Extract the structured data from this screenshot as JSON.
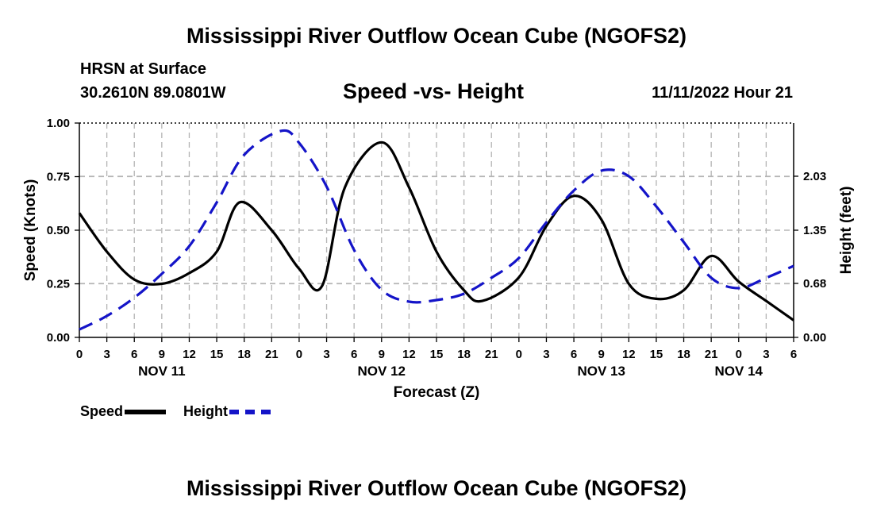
{
  "header": {
    "title": "Mississippi River Outflow Ocean Cube (NGOFS2)",
    "station": "HRSN at Surface",
    "coords": "30.2610N  89.0801W",
    "subtitle": "Speed -vs- Height",
    "datetime": "11/11/2022 Hour 21"
  },
  "footer": {
    "title": "Mississippi River Outflow Ocean Cube (NGOFS2)"
  },
  "colors": {
    "speed": "#000000",
    "height": "#1414c8",
    "grid": "#b4b4b4"
  },
  "chart_data": {
    "type": "line",
    "title": "Speed -vs- Height",
    "xlabel": "Forecast (Z)",
    "ylabel": "Speed (Knots)",
    "y2label": "Height (feet)",
    "xlim": [
      0,
      78
    ],
    "ylim": [
      0,
      1
    ],
    "y2lim": [
      0,
      2.7
    ],
    "x_ticks": [
      0,
      3,
      6,
      9,
      12,
      15,
      18,
      21,
      24,
      27,
      30,
      33,
      36,
      39,
      42,
      45,
      48,
      51,
      54,
      57,
      60,
      63,
      66,
      69,
      72,
      75,
      78
    ],
    "x_tick_labels": [
      "0",
      "3",
      "6",
      "9",
      "12",
      "15",
      "18",
      "21",
      "0",
      "3",
      "6",
      "9",
      "12",
      "15",
      "18",
      "21",
      "0",
      "3",
      "6",
      "9",
      "12",
      "15",
      "18",
      "21",
      "0",
      "3",
      "6"
    ],
    "date_labels": [
      {
        "x": 9,
        "label": "NOV 11"
      },
      {
        "x": 33,
        "label": "NOV 12"
      },
      {
        "x": 57,
        "label": "NOV 13"
      },
      {
        "x": 72,
        "label": "NOV 14"
      }
    ],
    "y_ticks": [
      0,
      0.25,
      0.5,
      0.75,
      1.0
    ],
    "y_tick_labels": [
      "0.00",
      "0.25",
      "0.50",
      "0.75",
      "1.00"
    ],
    "y2_ticks": [
      0,
      0.68,
      1.35,
      2.03
    ],
    "y2_tick_labels": [
      "0.00",
      "0.68",
      "1.35",
      "2.03"
    ],
    "series": [
      {
        "name": "Speed",
        "axis": "left",
        "style": "solid",
        "x": [
          0,
          3,
          6,
          9,
          12,
          15,
          17.5,
          21,
          24,
          26.5,
          29,
          33,
          36,
          39,
          42,
          44,
          48,
          51,
          54,
          57,
          60,
          63,
          66,
          69,
          72,
          75,
          78
        ],
        "values": [
          0.58,
          0.4,
          0.27,
          0.25,
          0.3,
          0.4,
          0.63,
          0.5,
          0.32,
          0.24,
          0.7,
          0.91,
          0.7,
          0.4,
          0.22,
          0.17,
          0.28,
          0.52,
          0.66,
          0.55,
          0.25,
          0.18,
          0.22,
          0.38,
          0.26,
          0.17,
          0.08
        ]
      },
      {
        "name": "Height",
        "axis": "right",
        "style": "dashed",
        "x": [
          0,
          3,
          6,
          9,
          12,
          15,
          18,
          22,
          24,
          27,
          30,
          33,
          36,
          39,
          42,
          45,
          48,
          51,
          54,
          57,
          60,
          63,
          66,
          69,
          72,
          75,
          78
        ],
        "values": [
          0.1,
          0.27,
          0.5,
          0.8,
          1.15,
          1.7,
          2.3,
          2.6,
          2.45,
          1.9,
          1.1,
          0.6,
          0.45,
          0.47,
          0.55,
          0.75,
          1.0,
          1.45,
          1.85,
          2.1,
          2.03,
          1.65,
          1.2,
          0.75,
          0.62,
          0.75,
          0.9
        ]
      }
    ],
    "legend": [
      {
        "name": "Speed",
        "label": "Speed"
      },
      {
        "name": "Height",
        "label": "Height"
      }
    ]
  }
}
